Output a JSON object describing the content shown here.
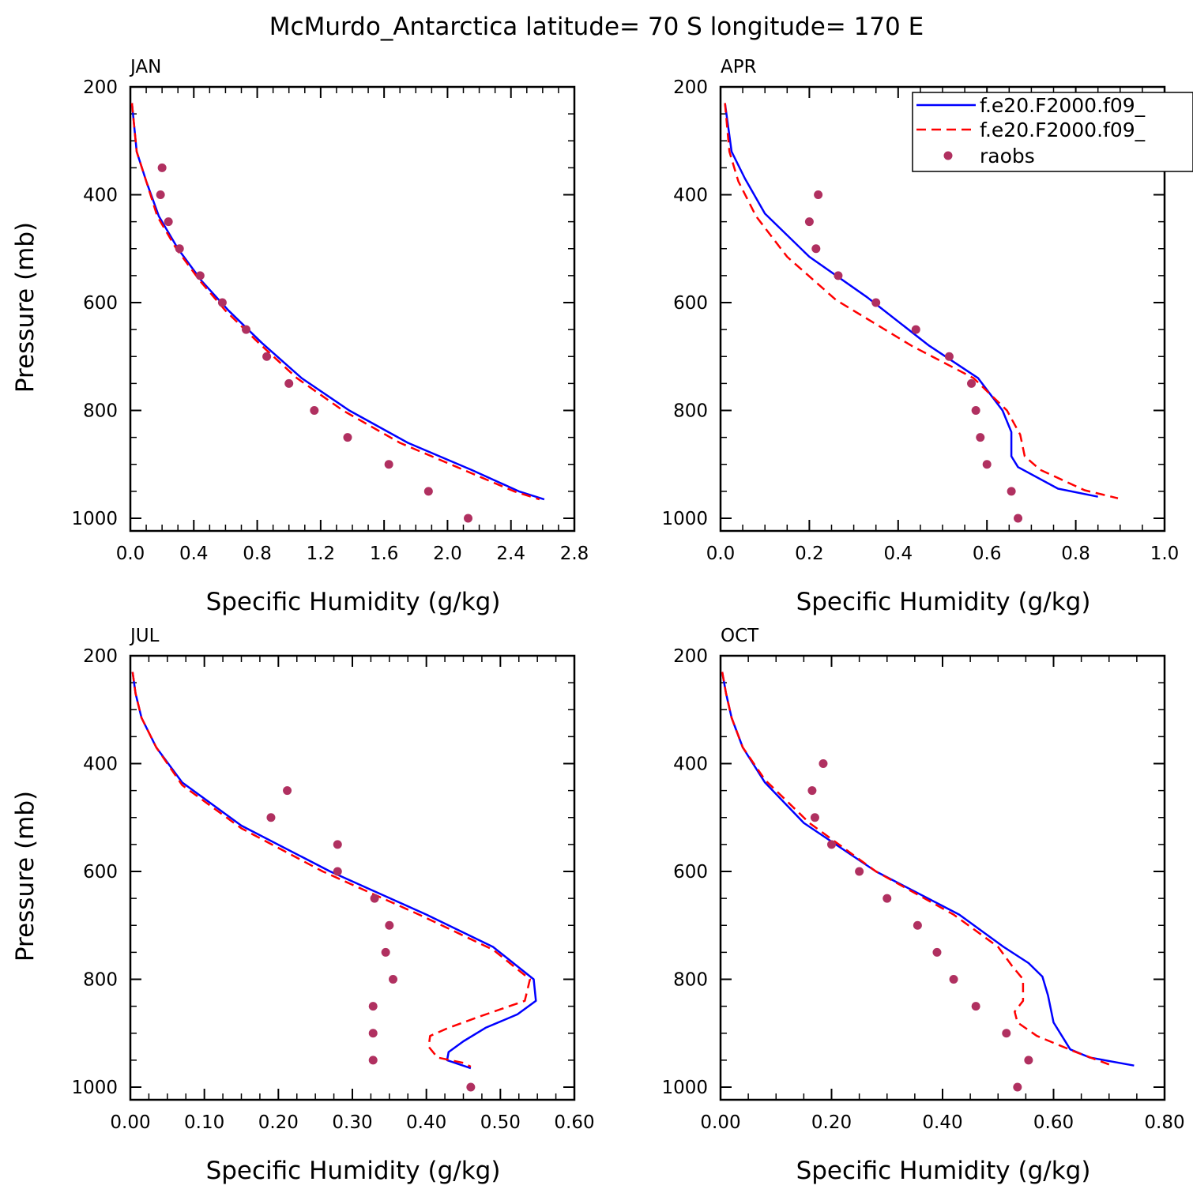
{
  "title": "McMurdo_Antarctica  latitude= 70 S longitude= 170 E",
  "legend": {
    "entries": [
      "f.e20.F2000.f09_",
      "f.e20.F2000.f09_",
      "raobs"
    ],
    "placement": "top-right of APR panel"
  },
  "colors": {
    "model1": "#0000ff",
    "model2": "#ff0000",
    "raobs": "#b03060",
    "axes": "#000000"
  },
  "chart_data": [
    {
      "type": "line",
      "title": "JAN",
      "xlabel": "Specific Humidity (g/kg)",
      "ylabel": "Pressure (mb)",
      "xlim": [
        0.0,
        2.8
      ],
      "ylim": [
        200,
        1000
      ],
      "y_inverted": true,
      "xticks": [
        "0.0",
        "0.4",
        "0.8",
        "1.2",
        "1.6",
        "2.0",
        "2.4",
        "2.8"
      ],
      "yticks": [
        "200",
        "400",
        "600",
        "800",
        "1000"
      ],
      "series": [
        {
          "name": "f.e20.F2000.f09_",
          "style": "solid",
          "x": [
            0.01,
            0.04,
            0.1,
            0.18,
            0.3,
            0.45,
            0.62,
            0.83,
            1.08,
            1.38,
            1.75,
            2.15,
            2.45,
            2.61
          ],
          "y": [
            230,
            320,
            375,
            440,
            500,
            560,
            615,
            675,
            740,
            800,
            860,
            910,
            950,
            965
          ]
        },
        {
          "name": "f.e20.F2000.f09_",
          "style": "dashed",
          "x": [
            0.01,
            0.04,
            0.1,
            0.17,
            0.29,
            0.44,
            0.6,
            0.81,
            1.05,
            1.34,
            1.7,
            2.1,
            2.42,
            2.58
          ],
          "y": [
            230,
            320,
            375,
            440,
            500,
            560,
            615,
            675,
            740,
            800,
            860,
            910,
            950,
            965
          ]
        },
        {
          "name": "raobs",
          "style": "markers",
          "x": [
            0.2,
            0.19,
            0.24,
            0.31,
            0.44,
            0.58,
            0.73,
            0.86,
            1.0,
            1.16,
            1.37,
            1.63,
            1.88,
            2.13
          ],
          "y": [
            350,
            400,
            450,
            500,
            550,
            600,
            650,
            700,
            750,
            800,
            850,
            900,
            950,
            1000
          ]
        }
      ]
    },
    {
      "type": "line",
      "title": "APR",
      "xlabel": "Specific Humidity (g/kg)",
      "ylabel": "",
      "xlim": [
        0.0,
        1.0
      ],
      "ylim": [
        200,
        1000
      ],
      "y_inverted": true,
      "xticks": [
        "0.0",
        "0.2",
        "0.4",
        "0.6",
        "0.8",
        "1.0"
      ],
      "yticks": [
        "200",
        "400",
        "600",
        "800",
        "1000"
      ],
      "series": [
        {
          "name": "f.e20.F2000.f09_",
          "style": "solid",
          "x": [
            0.01,
            0.025,
            0.055,
            0.1,
            0.2,
            0.33,
            0.47,
            0.58,
            0.635,
            0.655,
            0.655,
            0.67,
            0.76,
            0.85
          ],
          "y": [
            230,
            320,
            370,
            435,
            515,
            590,
            680,
            740,
            800,
            840,
            885,
            905,
            945,
            960
          ]
        },
        {
          "name": "f.e20.F2000.f09_",
          "style": "dashed",
          "x": [
            0.01,
            0.02,
            0.04,
            0.08,
            0.15,
            0.26,
            0.43,
            0.57,
            0.645,
            0.675,
            0.685,
            0.72,
            0.82,
            0.895
          ],
          "y": [
            230,
            320,
            375,
            440,
            515,
            595,
            680,
            740,
            800,
            845,
            885,
            910,
            948,
            963
          ]
        },
        {
          "name": "raobs",
          "style": "markers",
          "x": [
            0.22,
            0.2,
            0.215,
            0.265,
            0.35,
            0.44,
            0.515,
            0.565,
            0.575,
            0.585,
            0.6,
            0.655,
            0.67
          ],
          "y": [
            400,
            450,
            500,
            550,
            600,
            650,
            700,
            750,
            800,
            850,
            900,
            950,
            1000
          ]
        }
      ]
    },
    {
      "type": "line",
      "title": "JUL",
      "xlabel": "Specific Humidity (g/kg)",
      "ylabel": "Pressure (mb)",
      "xlim": [
        0.0,
        0.6
      ],
      "ylim": [
        200,
        1000
      ],
      "y_inverted": true,
      "xticks": [
        "0.00",
        "0.10",
        "0.20",
        "0.30",
        "0.40",
        "0.50",
        "0.60"
      ],
      "yticks": [
        "200",
        "400",
        "600",
        "800",
        "1000"
      ],
      "series": [
        {
          "name": "f.e20.F2000.f09_",
          "style": "solid",
          "x": [
            0.003,
            0.007,
            0.015,
            0.035,
            0.07,
            0.15,
            0.27,
            0.4,
            0.49,
            0.545,
            0.548,
            0.523,
            0.48,
            0.45,
            0.43,
            0.428,
            0.46
          ],
          "y": [
            230,
            270,
            315,
            370,
            435,
            515,
            600,
            680,
            740,
            800,
            840,
            865,
            890,
            915,
            935,
            950,
            965
          ]
        },
        {
          "name": "f.e20.F2000.f09_",
          "style": "dashed",
          "x": [
            0.003,
            0.007,
            0.015,
            0.035,
            0.07,
            0.15,
            0.26,
            0.39,
            0.49,
            0.54,
            0.533,
            0.47,
            0.43,
            0.405,
            0.403,
            0.415,
            0.45,
            0.46
          ],
          "y": [
            230,
            270,
            315,
            370,
            440,
            520,
            600,
            680,
            745,
            800,
            840,
            870,
            890,
            905,
            925,
            945,
            955,
            962
          ]
        },
        {
          "name": "raobs",
          "style": "markers",
          "x": [
            0.212,
            0.19,
            0.28,
            0.28,
            0.33,
            0.35,
            0.345,
            0.355,
            0.328,
            0.328,
            0.328,
            0.46
          ],
          "y": [
            450,
            500,
            550,
            600,
            650,
            700,
            750,
            800,
            850,
            900,
            950,
            1000
          ]
        }
      ]
    },
    {
      "type": "line",
      "title": "OCT",
      "xlabel": "Specific Humidity (g/kg)",
      "ylabel": "",
      "xlim": [
        0.0,
        0.8
      ],
      "ylim": [
        200,
        1000
      ],
      "y_inverted": true,
      "xticks": [
        "0.00",
        "0.20",
        "0.40",
        "0.60",
        "0.80"
      ],
      "yticks": [
        "200",
        "400",
        "600",
        "800",
        "1000"
      ],
      "series": [
        {
          "name": "f.e20.F2000.f09_",
          "style": "solid",
          "x": [
            0.003,
            0.01,
            0.02,
            0.04,
            0.08,
            0.15,
            0.28,
            0.43,
            0.51,
            0.555,
            0.58,
            0.59,
            0.6,
            0.63,
            0.665,
            0.745
          ],
          "y": [
            230,
            270,
            315,
            370,
            435,
            510,
            600,
            680,
            740,
            770,
            795,
            830,
            880,
            930,
            945,
            960
          ]
        },
        {
          "name": "f.e20.F2000.f09_",
          "style": "dashed",
          "x": [
            0.003,
            0.01,
            0.02,
            0.04,
            0.08,
            0.16,
            0.28,
            0.42,
            0.5,
            0.525,
            0.545,
            0.545,
            0.53,
            0.535,
            0.57,
            0.64,
            0.7
          ],
          "y": [
            230,
            270,
            315,
            370,
            430,
            510,
            600,
            680,
            740,
            775,
            800,
            840,
            860,
            880,
            905,
            935,
            958
          ]
        },
        {
          "name": "raobs",
          "style": "markers",
          "x": [
            0.185,
            0.165,
            0.17,
            0.2,
            0.25,
            0.3,
            0.355,
            0.39,
            0.42,
            0.46,
            0.515,
            0.555,
            0.535
          ],
          "y": [
            400,
            450,
            500,
            550,
            600,
            650,
            700,
            750,
            800,
            850,
            900,
            950,
            1000
          ]
        }
      ]
    }
  ]
}
